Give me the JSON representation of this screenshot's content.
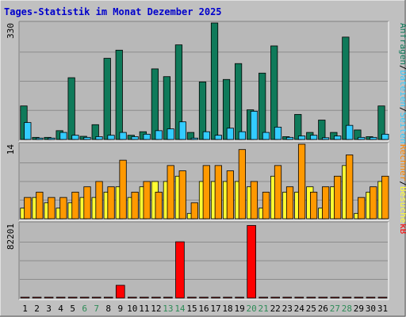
{
  "title": "Tages-Statistik im Monat Dezember 2025",
  "colors": {
    "background": "#c0c0c0",
    "plot_bg": "#b8b8b8",
    "title": "#0000cc",
    "anfragen": "#0f7a5a",
    "dateien": "#33ccff",
    "seiten": "#ffff33",
    "besuche": "#ff9900",
    "rechner": "#ff8800",
    "kb": "#ff0000",
    "weekend": "#2e8b57",
    "weekday": "#000000"
  },
  "chart_data": [
    {
      "type": "bar",
      "panel": "top",
      "ymax_label": "330",
      "ylim": [
        0,
        330
      ],
      "side_labels": [
        "Anfragen",
        "/",
        "Dateien",
        "/",
        "Seiten"
      ],
      "categories": [
        "1",
        "2",
        "3",
        "4",
        "5",
        "6",
        "7",
        "8",
        "9",
        "10",
        "11",
        "12",
        "13",
        "14",
        "15",
        "16",
        "17",
        "18",
        "19",
        "20",
        "21",
        "22",
        "23",
        "24",
        "25",
        "26",
        "27",
        "28",
        "29",
        "30",
        "31"
      ],
      "series": [
        {
          "name": "Anfragen",
          "values": [
            95,
            6,
            6,
            25,
            175,
            9,
            42,
            230,
            253,
            12,
            22,
            200,
            178,
            268,
            20,
            163,
            330,
            170,
            215,
            84,
            188,
            265,
            8,
            71,
            20,
            55,
            20,
            290,
            27,
            8,
            95
          ]
        },
        {
          "name": "Dateien",
          "values": [
            48,
            4,
            4,
            20,
            12,
            6,
            8,
            12,
            20,
            8,
            15,
            25,
            30,
            50,
            4,
            22,
            12,
            32,
            22,
            80,
            20,
            35,
            6,
            10,
            12,
            5,
            10,
            40,
            6,
            6,
            15
          ]
        }
      ]
    },
    {
      "type": "bar",
      "panel": "middle",
      "ymax_label": "14",
      "ylim": [
        0,
        14
      ],
      "side_labels": [
        "Rechner",
        "/",
        "Besuche"
      ],
      "categories": [
        "1",
        "2",
        "3",
        "4",
        "5",
        "6",
        "7",
        "8",
        "9",
        "10",
        "11",
        "12",
        "13",
        "14",
        "15",
        "16",
        "17",
        "18",
        "19",
        "20",
        "21",
        "22",
        "23",
        "24",
        "25",
        "26",
        "27",
        "28",
        "29",
        "30",
        "31"
      ],
      "series": [
        {
          "name": "Seiten",
          "values": [
            2,
            4,
            3,
            2,
            3,
            4,
            4,
            5,
            6,
            4,
            6,
            7,
            7,
            8,
            1,
            7,
            7,
            7,
            7,
            6,
            2,
            8,
            5,
            5,
            6,
            2,
            6,
            10,
            1,
            5,
            7
          ]
        },
        {
          "name": "Besuche",
          "values": [
            4,
            5,
            4,
            4,
            5,
            6,
            7,
            6,
            11,
            5,
            7,
            5,
            10,
            9,
            3,
            10,
            10,
            9,
            13,
            7,
            5,
            10,
            6,
            14,
            5,
            6,
            8,
            12,
            4,
            6,
            8
          ]
        }
      ]
    },
    {
      "type": "bar",
      "panel": "bottom",
      "ymax_label": "82201",
      "ylim": [
        0,
        82201
      ],
      "side_labels": [
        "kB"
      ],
      "categories": [
        "1",
        "2",
        "3",
        "4",
        "5",
        "6",
        "7",
        "8",
        "9",
        "10",
        "11",
        "12",
        "13",
        "14",
        "15",
        "16",
        "17",
        "18",
        "19",
        "20",
        "21",
        "22",
        "23",
        "24",
        "25",
        "26",
        "27",
        "28",
        "29",
        "30",
        "31"
      ],
      "series": [
        {
          "name": "kB",
          "values": [
            0,
            0,
            0,
            0,
            0,
            0,
            0,
            0,
            14000,
            0,
            0,
            0,
            0,
            62000,
            0,
            0,
            0,
            0,
            0,
            80000,
            0,
            0,
            0,
            0,
            0,
            0,
            0,
            0,
            0,
            0,
            0
          ]
        }
      ]
    }
  ],
  "x_labels": [
    "1",
    "2",
    "3",
    "4",
    "5",
    "6",
    "7",
    "8",
    "9",
    "10",
    "11",
    "12",
    "13",
    "14",
    "15",
    "16",
    "17",
    "18",
    "19",
    "20",
    "21",
    "22",
    "23",
    "24",
    "25",
    "26",
    "27",
    "28",
    "29",
    "30",
    "31"
  ],
  "weekend_days": [
    6,
    7,
    13,
    14,
    20,
    21,
    27,
    28
  ]
}
